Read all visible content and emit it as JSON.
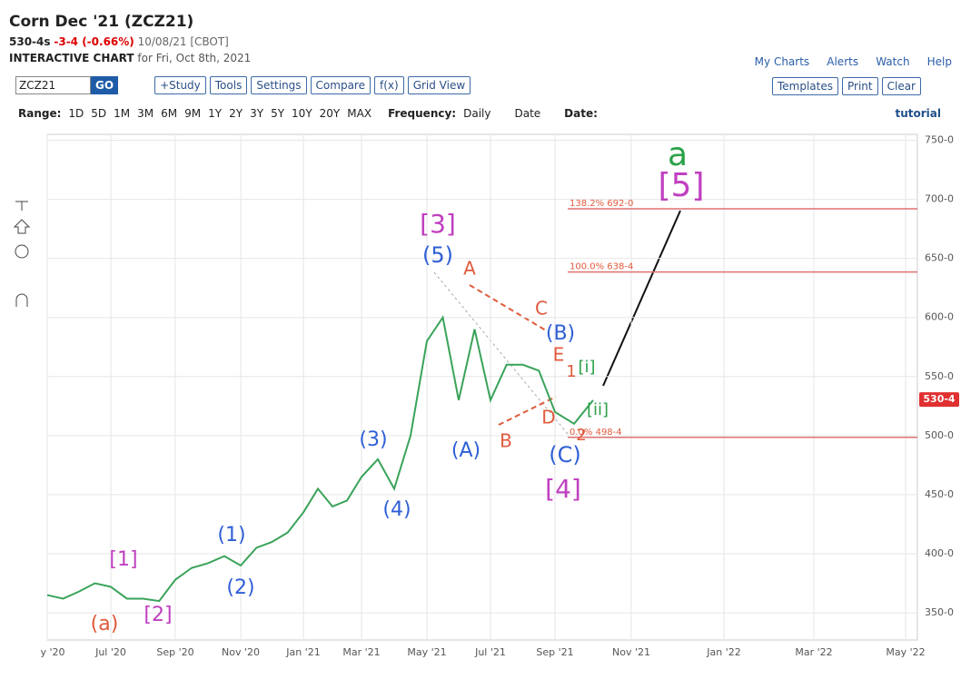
{
  "header": {
    "title": "Corn Dec '21 (ZCZ21)",
    "price": "530-4s",
    "change": "-3-4 (-0.66%)",
    "meta": "10/08/21 [CBOT]",
    "chart_label": "INTERACTIVE CHART",
    "chart_date": "for Fri, Oct 8th, 2021",
    "links": [
      "My Charts",
      "Alerts",
      "Watch",
      "Help"
    ]
  },
  "toolbar": {
    "symbol": "ZCZ21",
    "go": "GO",
    "buttons": [
      "+Study",
      "Tools",
      "Settings",
      "Compare",
      "f(x)",
      "Grid View"
    ],
    "right_buttons": [
      "Templates",
      "Print",
      "Clear"
    ],
    "range_label": "Range:",
    "ranges": [
      "1D",
      "5D",
      "1M",
      "3M",
      "6M",
      "9M",
      "1Y",
      "2Y",
      "3Y",
      "5Y",
      "10Y",
      "20Y",
      "MAX"
    ],
    "frequency_label": "Frequency:",
    "frequency": "Daily",
    "date_mode": "Date",
    "date_label": "Date:",
    "tutorial": "tutorial"
  },
  "chart_data": {
    "type": "line",
    "color": "#3aa35a",
    "categories": [
      "y '20",
      null,
      null,
      null,
      "Jul '20",
      null,
      null,
      null,
      "Sep '20",
      null,
      null,
      null,
      "Nov '20",
      null,
      null,
      null,
      "Jan '21",
      null,
      null,
      null,
      "Mar '21",
      null,
      null,
      null,
      "May '21",
      null,
      null,
      null,
      "Jul '21",
      null,
      null,
      null,
      "Sep '21",
      null,
      null,
      null,
      "Nov '21",
      null,
      null,
      null,
      "Jan '22",
      null,
      null,
      null,
      "Mar '22",
      null,
      null,
      null,
      "May '22"
    ],
    "values": [
      365,
      362,
      368,
      375,
      372,
      362,
      362,
      360,
      378,
      388,
      392,
      398,
      390,
      405,
      410,
      418,
      435,
      455,
      440,
      445,
      465,
      480,
      455,
      500,
      580,
      600,
      530,
      590,
      530,
      560,
      560,
      555,
      520,
      510,
      530,
      null,
      null,
      null,
      null,
      null,
      null,
      null,
      null,
      null,
      null,
      null,
      null,
      null,
      null
    ],
    "ylim": [
      327,
      755
    ],
    "yticks": [
      {
        "value": 350,
        "label": "350-0"
      },
      {
        "value": 400,
        "label": "400-0"
      },
      {
        "value": 450,
        "label": "450-0"
      },
      {
        "value": 500,
        "label": "500-0"
      },
      {
        "value": 550,
        "label": "550-0"
      },
      {
        "value": 600,
        "label": "600-0"
      },
      {
        "value": 650,
        "label": "650-0"
      },
      {
        "value": 700,
        "label": "700-0"
      },
      {
        "value": 750,
        "label": "750-0"
      }
    ],
    "grid": true,
    "levels": [
      {
        "value": 692,
        "label": "138.2% 692-0"
      },
      {
        "value": 638.5,
        "label": "100.0% 638-4"
      },
      {
        "value": 498.5,
        "label": "0.0% 498-4"
      }
    ],
    "last": {
      "value": 530.5,
      "label": "530-4"
    },
    "annotations": [
      {
        "text": "[1]",
        "color": "#c040c0"
      },
      {
        "text": "(a)",
        "color": "#e05a3c"
      },
      {
        "text": "[2]",
        "color": "#c040c0"
      },
      {
        "text": "(1)",
        "color": "#2f5fd6"
      },
      {
        "text": "(2)",
        "color": "#2f5fd6"
      },
      {
        "text": "(3)",
        "color": "#2f5fd6"
      },
      {
        "text": "(4)",
        "color": "#2f5fd6"
      },
      {
        "text": "[3]",
        "color": "#c040c0"
      },
      {
        "text": "(5)",
        "color": "#2f5fd6"
      },
      {
        "text": "A",
        "color": "#e05a3c"
      },
      {
        "text": "(A)",
        "color": "#2f5fd6"
      },
      {
        "text": "B",
        "color": "#e05a3c"
      },
      {
        "text": "C",
        "color": "#e05a3c"
      },
      {
        "text": "(B)",
        "color": "#2f5fd6"
      },
      {
        "text": "E",
        "color": "#e05a3c"
      },
      {
        "text": "1",
        "color": "#e05a3c"
      },
      {
        "text": "[i]",
        "color": "#2aa148"
      },
      {
        "text": "[ii]",
        "color": "#2aa148"
      },
      {
        "text": "D",
        "color": "#e05a3c"
      },
      {
        "text": "2",
        "color": "#e05a3c"
      },
      {
        "text": "(C)",
        "color": "#2f5fd6"
      },
      {
        "text": "[4]",
        "color": "#c040c0"
      },
      {
        "text": "a",
        "color": "#2aa148"
      },
      {
        "text": "[5]",
        "color": "#c040c0"
      }
    ]
  }
}
